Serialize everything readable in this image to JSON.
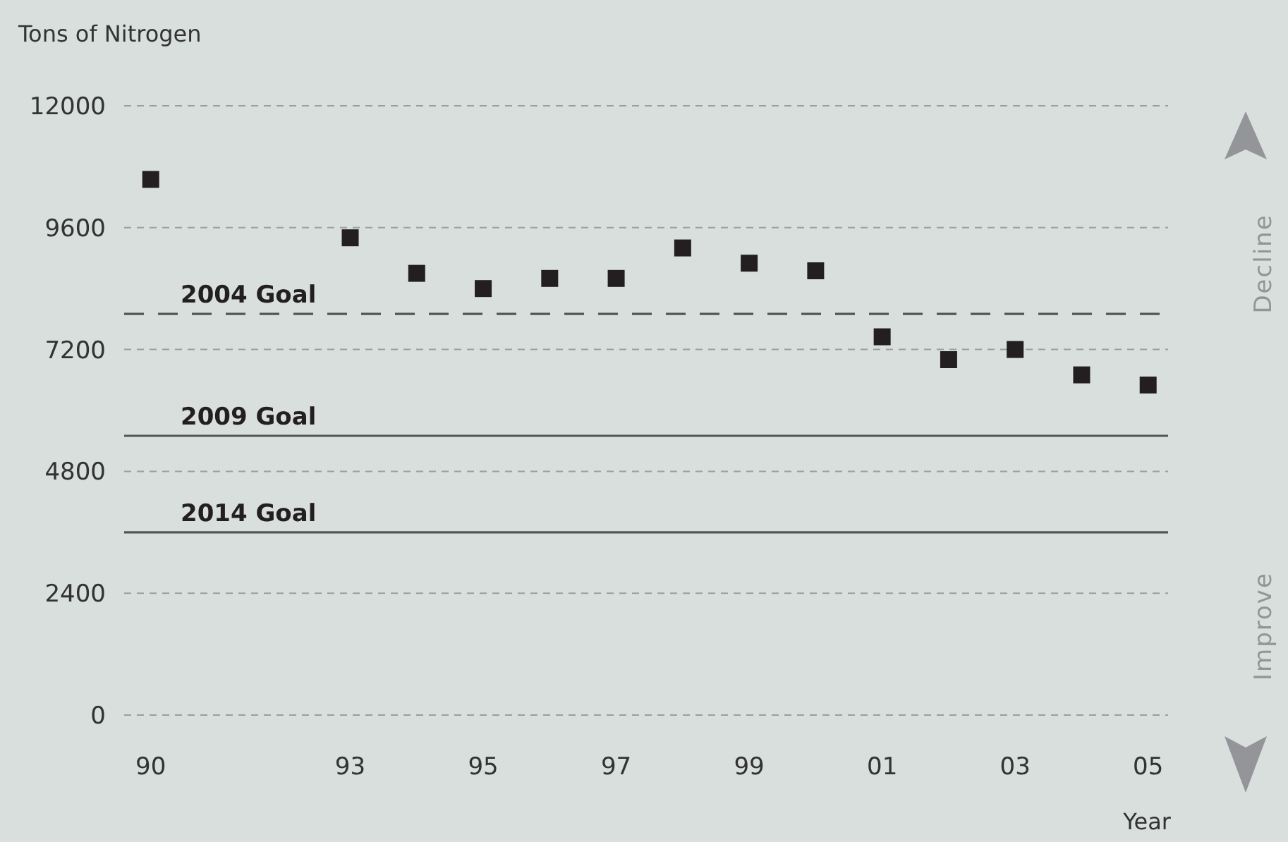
{
  "chart_data": {
    "type": "scatter",
    "ylabel": "Tons of Nitrogen",
    "xlabel": "Year",
    "x": [
      1990,
      1993,
      1994,
      1995,
      1996,
      1997,
      1998,
      1999,
      2000,
      2001,
      2002,
      2003,
      2004,
      2005
    ],
    "values": [
      10550,
      9400,
      8700,
      8400,
      8600,
      8600,
      9200,
      8900,
      8750,
      7450,
      7000,
      7200,
      6700,
      6500
    ],
    "color": "#231f20",
    "marker": "square",
    "xlim": [
      1989.6,
      2005.3
    ],
    "xticks": [
      {
        "value": 1990,
        "label": "90"
      },
      {
        "value": 1993,
        "label": "93"
      },
      {
        "value": 1995,
        "label": "95"
      },
      {
        "value": 1997,
        "label": "97"
      },
      {
        "value": 1999,
        "label": "99"
      },
      {
        "value": 2001,
        "label": "01"
      },
      {
        "value": 2003,
        "label": "03"
      },
      {
        "value": 2005,
        "label": "05"
      }
    ],
    "ylim": [
      0,
      12000
    ],
    "yticks": [
      0,
      2400,
      4800,
      7200,
      9600,
      12000
    ],
    "grid": "y",
    "ref_lines": [
      {
        "axis": "y",
        "value": 7900,
        "label": "2004 Goal",
        "line_style": "dashed",
        "color": "#555555"
      },
      {
        "axis": "y",
        "value": 5500,
        "label": "2009 Goal",
        "line_style": "solid",
        "color": "#555555"
      },
      {
        "axis": "y",
        "value": 3600,
        "label": "2014 Goal",
        "line_style": "solid",
        "color": "#555555"
      }
    ],
    "annotations": [
      "Decline",
      "Improve"
    ]
  }
}
